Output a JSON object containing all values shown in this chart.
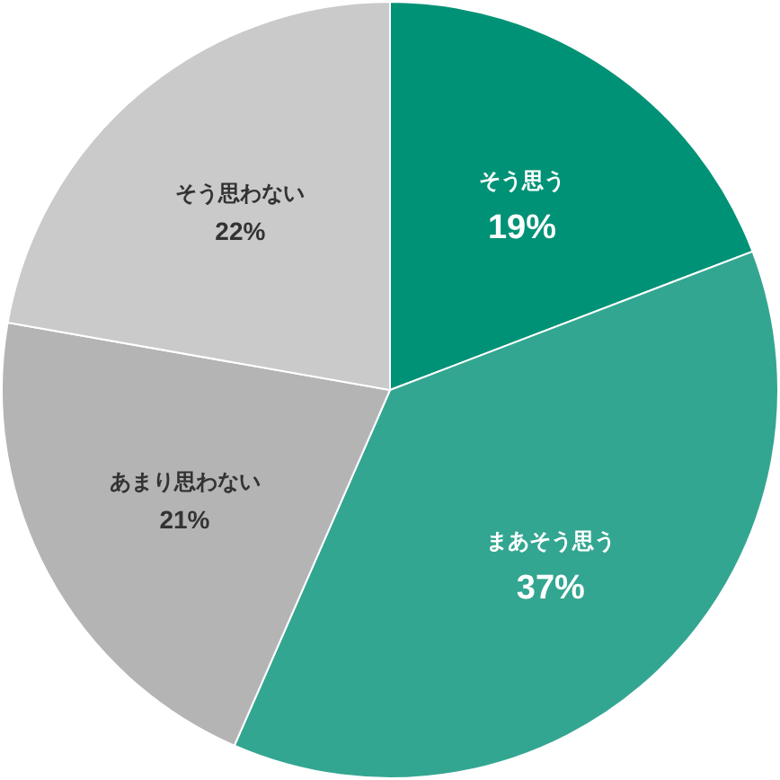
{
  "chart_data": {
    "type": "pie",
    "categories": [
      "そう思う",
      "まあそう思う",
      "あまり思わない",
      "そう思わない"
    ],
    "values": [
      19,
      37,
      21,
      22
    ],
    "colors": [
      "#009276",
      "#33a691",
      "#b4b4b4",
      "#cacaca"
    ],
    "value_labels": [
      "19%",
      "37%",
      "21%",
      "22%"
    ]
  }
}
